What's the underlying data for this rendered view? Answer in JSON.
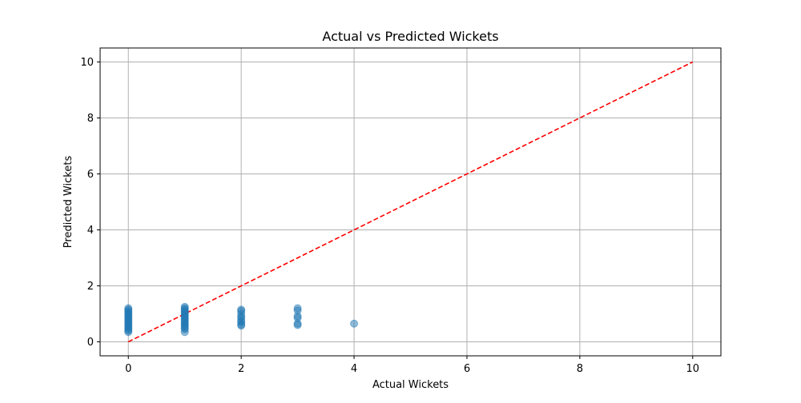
{
  "chart_data": {
    "type": "scatter",
    "title": "Actual vs Predicted Wickets",
    "xlabel": "Actual Wickets",
    "ylabel": "Predicted Wickets",
    "xlim": [
      -0.5,
      10.5
    ],
    "ylim": [
      -0.5,
      10.5
    ],
    "xticks": [
      0,
      2,
      4,
      6,
      8,
      10
    ],
    "yticks": [
      0,
      2,
      4,
      6,
      8,
      10
    ],
    "grid": true,
    "colors": {
      "points": "#1f77b4",
      "reference": "#ff0000",
      "grid": "#b0b0b0"
    },
    "reference_line": {
      "x": [
        0,
        10
      ],
      "y": [
        0,
        10
      ],
      "style": "dashed"
    },
    "points": [
      {
        "x": 0,
        "y": 1.2
      },
      {
        "x": 0,
        "y": 1.15
      },
      {
        "x": 0,
        "y": 1.1
      },
      {
        "x": 0,
        "y": 1.05
      },
      {
        "x": 0,
        "y": 1.0
      },
      {
        "x": 0,
        "y": 0.95
      },
      {
        "x": 0,
        "y": 0.9
      },
      {
        "x": 0,
        "y": 0.85
      },
      {
        "x": 0,
        "y": 0.8
      },
      {
        "x": 0,
        "y": 0.75
      },
      {
        "x": 0,
        "y": 0.7
      },
      {
        "x": 0,
        "y": 0.65
      },
      {
        "x": 0,
        "y": 0.6
      },
      {
        "x": 0,
        "y": 0.55
      },
      {
        "x": 0,
        "y": 0.5
      },
      {
        "x": 0,
        "y": 0.45
      },
      {
        "x": 0,
        "y": 0.4
      },
      {
        "x": 0,
        "y": 0.35
      },
      {
        "x": 1,
        "y": 1.25
      },
      {
        "x": 1,
        "y": 1.2
      },
      {
        "x": 1,
        "y": 1.15
      },
      {
        "x": 1,
        "y": 1.1
      },
      {
        "x": 1,
        "y": 1.05
      },
      {
        "x": 1,
        "y": 1.0
      },
      {
        "x": 1,
        "y": 0.95
      },
      {
        "x": 1,
        "y": 0.9
      },
      {
        "x": 1,
        "y": 0.85
      },
      {
        "x": 1,
        "y": 0.8
      },
      {
        "x": 1,
        "y": 0.75
      },
      {
        "x": 1,
        "y": 0.7
      },
      {
        "x": 1,
        "y": 0.65
      },
      {
        "x": 1,
        "y": 0.6
      },
      {
        "x": 1,
        "y": 0.55
      },
      {
        "x": 1,
        "y": 0.5
      },
      {
        "x": 1,
        "y": 0.45
      },
      {
        "x": 1,
        "y": 0.35
      },
      {
        "x": 2,
        "y": 1.15
      },
      {
        "x": 2,
        "y": 1.1
      },
      {
        "x": 2,
        "y": 1.0
      },
      {
        "x": 2,
        "y": 0.9
      },
      {
        "x": 2,
        "y": 0.85
      },
      {
        "x": 2,
        "y": 0.75
      },
      {
        "x": 2,
        "y": 0.7
      },
      {
        "x": 2,
        "y": 0.62
      },
      {
        "x": 2,
        "y": 0.58
      },
      {
        "x": 3,
        "y": 1.2
      },
      {
        "x": 3,
        "y": 1.12
      },
      {
        "x": 3,
        "y": 0.92
      },
      {
        "x": 3,
        "y": 0.85
      },
      {
        "x": 3,
        "y": 0.65
      },
      {
        "x": 3,
        "y": 0.6
      },
      {
        "x": 4,
        "y": 0.65
      }
    ]
  }
}
